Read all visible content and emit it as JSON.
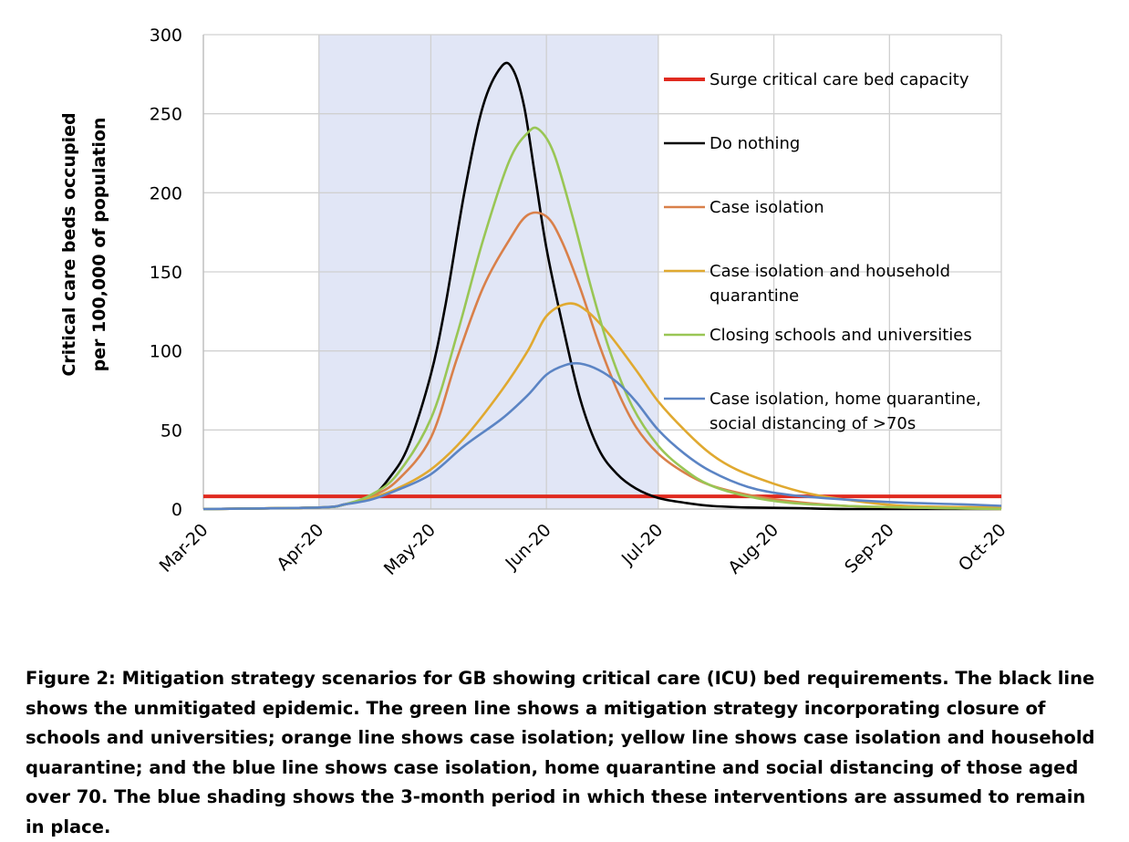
{
  "chart_data": {
    "type": "line",
    "ylabel": [
      "Critical care beds occupied",
      "per 100,000 of population"
    ],
    "ylim": [
      0,
      300
    ],
    "yticks": [
      0,
      50,
      100,
      150,
      200,
      250,
      300
    ],
    "x_ticks": [
      "Mar-20",
      "Apr-20",
      "May-20",
      "Jun-20",
      "Jul-20",
      "Aug-20",
      "Sep-20",
      "Oct-20"
    ],
    "xlim": [
      "2020-03-01",
      "2020-10-01"
    ],
    "grid": true,
    "legend_position": "right, inside plot",
    "shaded_period": {
      "start": "2020-04-01",
      "end": "2020-07-01",
      "color": "#e1e6f6"
    },
    "series": [
      {
        "name": "Surge critical care bed capacity",
        "color": "#e02a1f",
        "x": [
          "2020-03-01",
          "2020-10-01"
        ],
        "y": [
          8,
          8
        ]
      },
      {
        "name": "Do nothing",
        "color": "#000000",
        "x": [
          "2020-03-01",
          "2020-04-01",
          "2020-04-08",
          "2020-04-15",
          "2020-04-20",
          "2020-04-25",
          "2020-05-01",
          "2020-05-05",
          "2020-05-10",
          "2020-05-15",
          "2020-05-20",
          "2020-05-23",
          "2020-05-26",
          "2020-05-29",
          "2020-06-01",
          "2020-06-05",
          "2020-06-10",
          "2020-06-15",
          "2020-06-20",
          "2020-06-25",
          "2020-07-01",
          "2020-07-08",
          "2020-07-15",
          "2020-07-25",
          "2020-08-08",
          "2020-08-22",
          "2020-10-01"
        ],
        "y": [
          0,
          1,
          3,
          8,
          20,
          40,
          85,
          130,
          200,
          255,
          280,
          278,
          255,
          210,
          165,
          120,
          70,
          38,
          22,
          13,
          7,
          4,
          2,
          1,
          0.5,
          0,
          0
        ]
      },
      {
        "name": "Case isolation",
        "color": "#d9804a",
        "x": [
          "2020-03-01",
          "2020-04-01",
          "2020-04-08",
          "2020-04-15",
          "2020-04-22",
          "2020-05-01",
          "2020-05-08",
          "2020-05-15",
          "2020-05-22",
          "2020-05-27",
          "2020-06-01",
          "2020-06-05",
          "2020-06-10",
          "2020-06-15",
          "2020-06-20",
          "2020-06-25",
          "2020-07-01",
          "2020-07-08",
          "2020-07-15",
          "2020-07-25",
          "2020-08-05",
          "2020-08-20",
          "2020-09-05",
          "2020-10-01"
        ],
        "y": [
          0,
          1,
          3,
          8,
          18,
          45,
          95,
          140,
          170,
          186,
          185,
          170,
          140,
          105,
          75,
          52,
          35,
          23,
          15,
          9,
          5,
          2,
          1,
          0
        ]
      },
      {
        "name": "Case isolation and household quarantine",
        "color": "#e0a930",
        "x": [
          "2020-03-01",
          "2020-04-01",
          "2020-04-08",
          "2020-04-15",
          "2020-04-22",
          "2020-05-01",
          "2020-05-10",
          "2020-05-20",
          "2020-05-27",
          "2020-06-01",
          "2020-06-07",
          "2020-06-12",
          "2020-06-18",
          "2020-06-25",
          "2020-07-01",
          "2020-07-08",
          "2020-07-15",
          "2020-07-22",
          "2020-08-01",
          "2020-08-10",
          "2020-08-20",
          "2020-09-05",
          "2020-10-01"
        ],
        "y": [
          0,
          1,
          3,
          7,
          13,
          25,
          45,
          75,
          100,
          122,
          130,
          125,
          110,
          88,
          68,
          50,
          35,
          25,
          16,
          10,
          6,
          2,
          1
        ]
      },
      {
        "name": "Closing schools and universities",
        "color": "#99c655",
        "x": [
          "2020-03-01",
          "2020-04-01",
          "2020-04-08",
          "2020-04-15",
          "2020-04-22",
          "2020-05-01",
          "2020-05-08",
          "2020-05-15",
          "2020-05-22",
          "2020-05-27",
          "2020-05-30",
          "2020-06-03",
          "2020-06-08",
          "2020-06-13",
          "2020-06-18",
          "2020-06-24",
          "2020-07-01",
          "2020-07-08",
          "2020-07-15",
          "2020-07-25",
          "2020-08-05",
          "2020-08-20",
          "2020-09-05",
          "2020-10-01"
        ],
        "y": [
          0,
          1,
          3,
          9,
          22,
          57,
          110,
          170,
          220,
          238,
          240,
          225,
          185,
          140,
          100,
          65,
          40,
          25,
          15,
          8,
          4,
          2,
          1,
          0
        ]
      },
      {
        "name": "Case isolation, home quarantine, social distancing of >70s",
        "color": "#5b84c4",
        "x": [
          "2020-03-01",
          "2020-04-01",
          "2020-04-08",
          "2020-04-15",
          "2020-04-22",
          "2020-05-01",
          "2020-05-10",
          "2020-05-20",
          "2020-05-27",
          "2020-06-01",
          "2020-06-06",
          "2020-06-10",
          "2020-06-15",
          "2020-06-20",
          "2020-06-25",
          "2020-07-01",
          "2020-07-08",
          "2020-07-15",
          "2020-07-25",
          "2020-08-05",
          "2020-08-20",
          "2020-09-05",
          "2020-09-20",
          "2020-10-01"
        ],
        "y": [
          0,
          1,
          3,
          6,
          12,
          22,
          40,
          57,
          72,
          85,
          91,
          92,
          88,
          80,
          68,
          50,
          35,
          24,
          14,
          9,
          6,
          4,
          3,
          2
        ]
      }
    ]
  },
  "caption": "Figure 2: Mitigation strategy scenarios for GB showing critical care (ICU) bed requirements. The black line shows the unmitigated epidemic. The green line shows a mitigation strategy incorporating closure of schools and universities; orange line shows case isolation; yellow line shows case isolation and household quarantine; and the blue line shows case isolation, home quarantine and social distancing of those aged over 70. The blue shading shows the 3-month period in which these interventions are assumed to remain in place."
}
